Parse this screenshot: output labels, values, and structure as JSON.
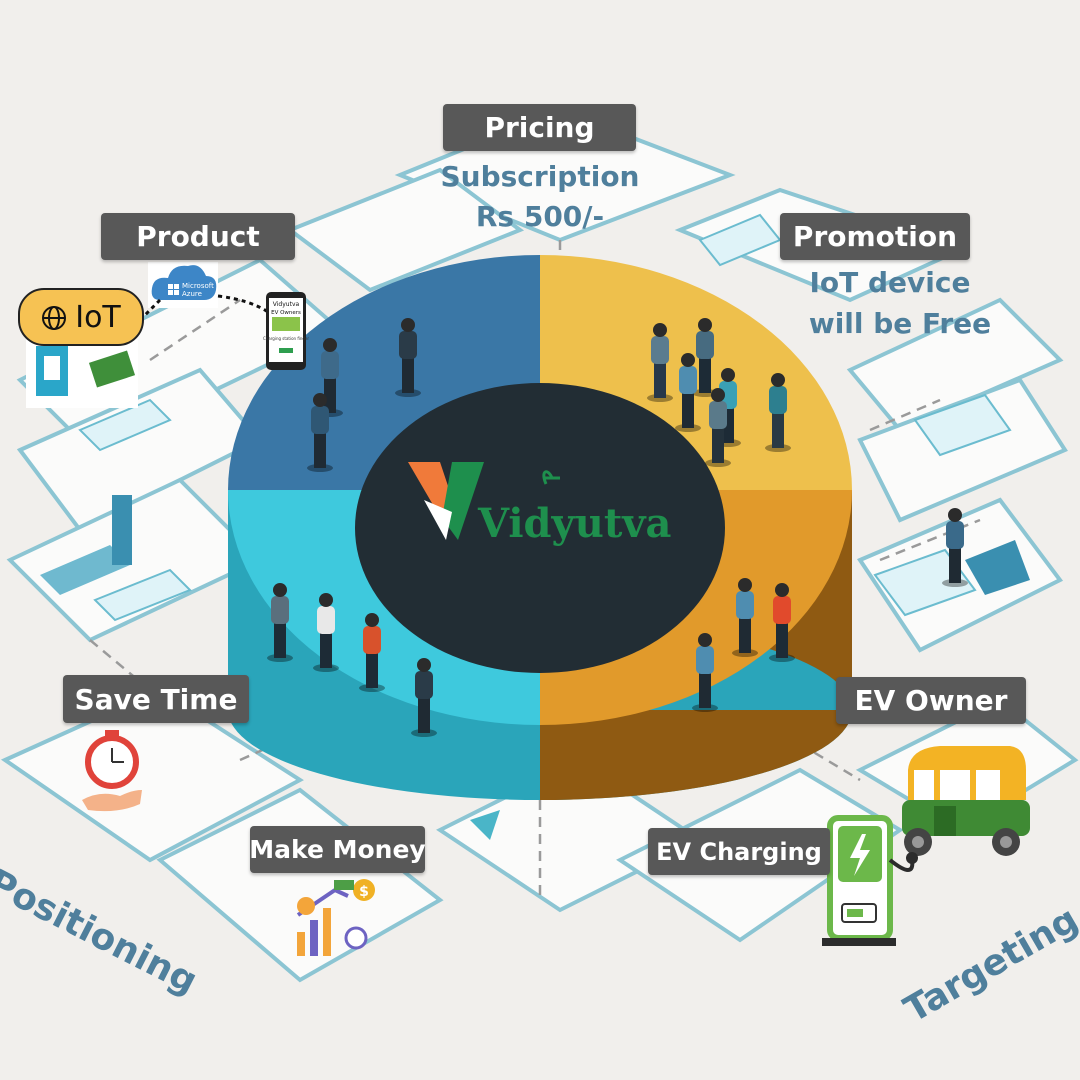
{
  "logo": {
    "text": "Vidyutva"
  },
  "labels": {
    "pricing": "Pricing",
    "product": "Product",
    "promotion": "Promotion",
    "save_time": "Save Time",
    "make_money": "Make Money",
    "ev_owner": "EV Owner",
    "ev_charging": "EV Charging"
  },
  "pricing_detail": {
    "line1": "Subscription",
    "line2": "Rs 500/-"
  },
  "promotion_detail": {
    "line1": "IoT device",
    "line2": "will  be Free"
  },
  "iot_badge": {
    "text": "IoT",
    "icon": "globe-icon"
  },
  "azure": {
    "line1": "Microsoft",
    "line2": "Azure"
  },
  "phone": {
    "brand": "Vidyutva",
    "title": "EV Owners",
    "body": "Charging station finder"
  },
  "sections": {
    "positioning": "Positioning",
    "targeting": "Targeting"
  },
  "colors": {
    "background": "#f1efec",
    "segment_product": "#3a77a6",
    "segment_promotion": "#eec04c",
    "segment_positioning": "#3ec9dd",
    "segment_targeting": "#e19a2b",
    "hub": "#222d34",
    "label_bg": "#585858",
    "accent_text": "#4f7f9c",
    "logo_orange": "#f07a3a",
    "logo_green": "#1e8f4d"
  }
}
